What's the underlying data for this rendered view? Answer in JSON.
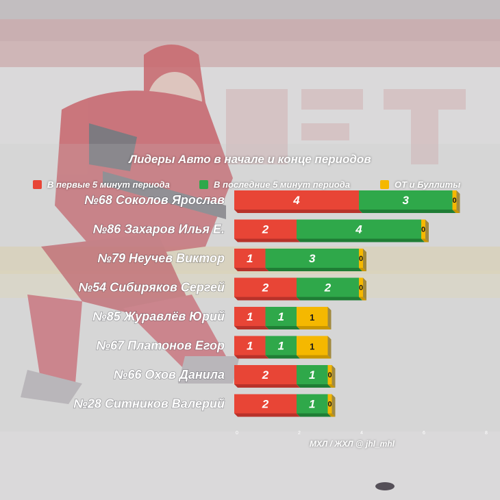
{
  "colors": {
    "first5": "#e84536",
    "last5": "#2fa84a",
    "ot": "#f5b800",
    "text": "#ffffff"
  },
  "legend": {
    "first5": "В первые 5 минут периода",
    "last5": "В последние 5 минут периода",
    "ot": "ОТ и Буллиты"
  },
  "source": "МХЛ / ЖХЛ @ jhl_mhl",
  "chart_data": {
    "type": "bar",
    "orientation": "horizontal",
    "stacked": true,
    "title": "Лидеры Авто в начале и конце периодов",
    "categories": [
      "№68 Соколов Ярослав",
      "№86 Захаров Илья Е.",
      "№79 Неучев Виктор",
      "№54 Сибиряков Сергей",
      "№85 Журавлёв Юрий",
      "№67 Платонов Егор",
      "№66 Охов Данила",
      "№28 Ситников Валерий"
    ],
    "series": [
      {
        "name": "В первые 5 минут периода",
        "values": [
          4,
          2,
          1,
          2,
          1,
          1,
          2,
          2
        ]
      },
      {
        "name": "В последние 5 минут периода",
        "values": [
          3,
          4,
          3,
          2,
          1,
          1,
          1,
          1
        ]
      },
      {
        "name": "ОТ и Буллиты",
        "values": [
          0,
          0,
          0,
          0,
          1,
          1,
          0,
          0
        ]
      }
    ],
    "xlim": [
      0,
      8
    ],
    "xticks": [
      "0",
      "2",
      "4",
      "6",
      "8"
    ],
    "legend_position": "top",
    "grid": false
  }
}
